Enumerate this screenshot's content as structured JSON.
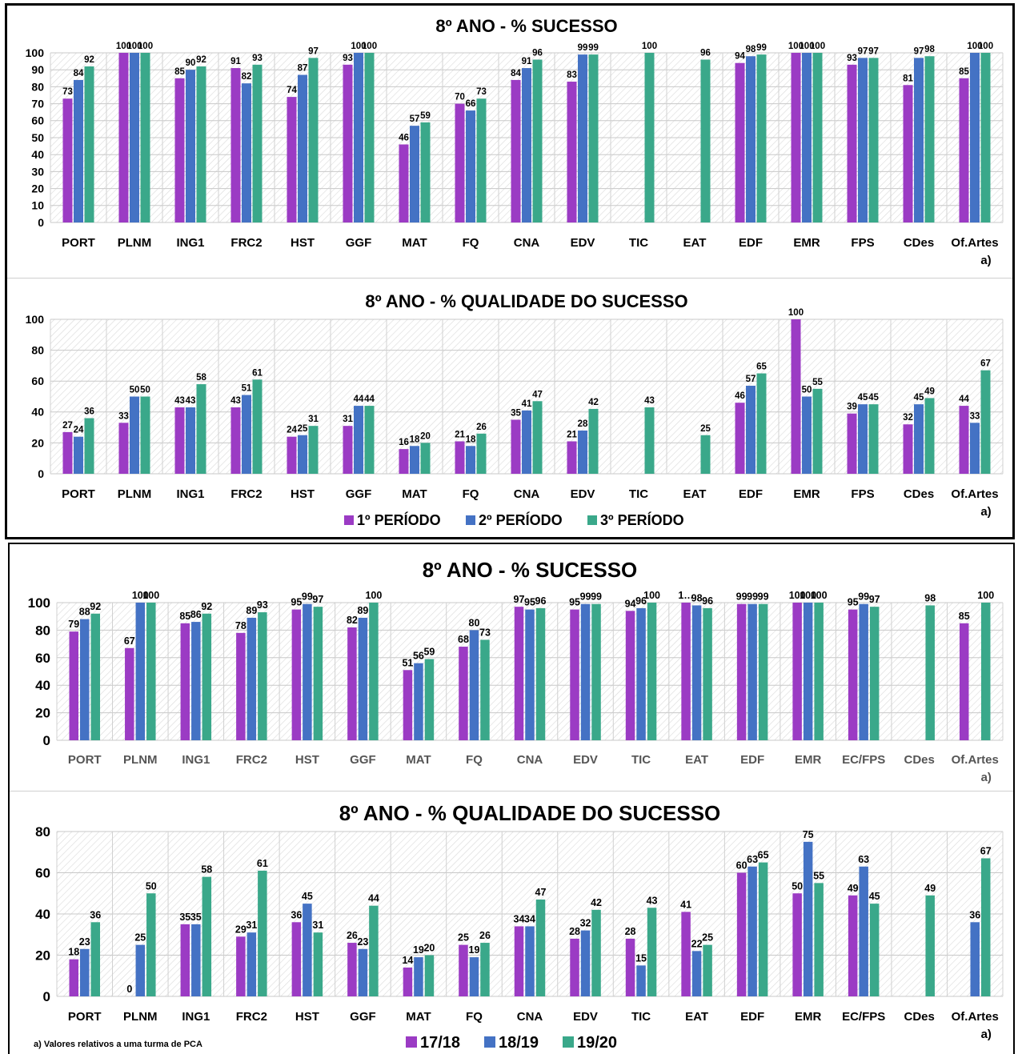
{
  "colors": {
    "c1": "#9b3bc4",
    "c2": "#4472c4",
    "c3": "#3aa88a"
  },
  "panels": {
    "top": {
      "legend": [
        "1º PERÍODO",
        "2º PERÍODO",
        "3º PERÍODO"
      ]
    },
    "bottom": {
      "legend": [
        "17/18",
        "18/19",
        "19/20"
      ],
      "footnote": "a) Valores relativos a  uma turma de PCA"
    }
  },
  "chart_data": [
    {
      "type": "bar",
      "title": "8º ANO - % SUCESSO",
      "categories": [
        "PORT",
        "PLNM",
        "ING1",
        "FRC2",
        "HST",
        "GGF",
        "MAT",
        "FQ",
        "CNA",
        "EDV",
        "TIC",
        "EAT",
        "EDF",
        "EMR",
        "FPS",
        "CDes",
        "Of.Artes"
      ],
      "category_notes": [
        "",
        "",
        "",
        "",
        "",
        "",
        "",
        "",
        "",
        "",
        "",
        "",
        "",
        "",
        "",
        "",
        "a)"
      ],
      "yticks": [
        0,
        10,
        20,
        30,
        40,
        50,
        60,
        70,
        80,
        90,
        100
      ],
      "ylim": [
        0,
        100
      ],
      "series": [
        {
          "name": "1º PERÍODO",
          "values": [
            73,
            100,
            85,
            91,
            74,
            93,
            46,
            70,
            84,
            83,
            null,
            null,
            94,
            100,
            93,
            81,
            85
          ]
        },
        {
          "name": "2º PERÍODO",
          "values": [
            84,
            100,
            90,
            82,
            87,
            100,
            57,
            66,
            91,
            99,
            null,
            null,
            98,
            100,
            97,
            97,
            100
          ]
        },
        {
          "name": "3º PERÍODO",
          "values": [
            92,
            100,
            92,
            93,
            97,
            100,
            59,
            73,
            96,
            99,
            100,
            96,
            99,
            100,
            97,
            98,
            100
          ]
        }
      ]
    },
    {
      "type": "bar",
      "title": "8º ANO - % QUALIDADE DO SUCESSO",
      "categories": [
        "PORT",
        "PLNM",
        "ING1",
        "FRC2",
        "HST",
        "GGF",
        "MAT",
        "FQ",
        "CNA",
        "EDV",
        "TIC",
        "EAT",
        "EDF",
        "EMR",
        "FPS",
        "CDes",
        "Of.Artes"
      ],
      "category_notes": [
        "",
        "",
        "",
        "",
        "",
        "",
        "",
        "",
        "",
        "",
        "",
        "",
        "",
        "",
        "",
        "",
        "a)"
      ],
      "yticks": [
        0,
        20,
        40,
        60,
        80,
        100
      ],
      "ylim": [
        0,
        100
      ],
      "series": [
        {
          "name": "1º PERÍODO",
          "values": [
            27,
            33,
            43,
            43,
            24,
            31,
            16,
            21,
            35,
            21,
            null,
            null,
            46,
            100,
            39,
            32,
            44
          ]
        },
        {
          "name": "2º PERÍODO",
          "values": [
            24,
            50,
            43,
            51,
            25,
            44,
            18,
            18,
            41,
            28,
            null,
            null,
            57,
            50,
            45,
            45,
            33
          ]
        },
        {
          "name": "3º PERÍODO",
          "values": [
            36,
            50,
            58,
            61,
            31,
            44,
            20,
            26,
            47,
            42,
            43,
            25,
            65,
            55,
            45,
            49,
            67
          ]
        }
      ]
    },
    {
      "type": "bar",
      "title": "8º ANO - % SUCESSO",
      "categories": [
        "PORT",
        "PLNM",
        "ING1",
        "FRC2",
        "HST",
        "GGF",
        "MAT",
        "FQ",
        "CNA",
        "EDV",
        "TIC",
        "EAT",
        "EDF",
        "EMR",
        "EC/FPS",
        "CDes",
        "Of.Artes"
      ],
      "category_notes": [
        "",
        "",
        "",
        "",
        "",
        "",
        "",
        "",
        "",
        "",
        "",
        "",
        "",
        "",
        "",
        "",
        "a)"
      ],
      "yticks": [
        0,
        20,
        40,
        60,
        80,
        100
      ],
      "ylim": [
        0,
        100
      ],
      "series": [
        {
          "name": "17/18",
          "values": [
            79,
            67,
            85,
            78,
            95,
            82,
            51,
            68,
            97,
            95,
            94,
            100,
            99,
            100,
            95,
            null,
            85
          ]
        },
        {
          "name": "18/19",
          "values": [
            88,
            100,
            86,
            89,
            99,
            89,
            56,
            80,
            95,
            99,
            96,
            98,
            99,
            100,
            99,
            null,
            null
          ]
        },
        {
          "name": "19/20",
          "values": [
            92,
            100,
            92,
            93,
            97,
            100,
            59,
            73,
            96,
            99,
            100,
            96,
            99,
            100,
            97,
            98,
            100
          ]
        }
      ],
      "value_labels": {
        "0-11": "1…"
      }
    },
    {
      "type": "bar",
      "title": "8º ANO - % QUALIDADE DO SUCESSO",
      "categories": [
        "PORT",
        "PLNM",
        "ING1",
        "FRC2",
        "HST",
        "GGF",
        "MAT",
        "FQ",
        "CNA",
        "EDV",
        "TIC",
        "EAT",
        "EDF",
        "EMR",
        "EC/FPS",
        "CDes",
        "Of.Artes"
      ],
      "category_notes": [
        "",
        "",
        "",
        "",
        "",
        "",
        "",
        "",
        "",
        "",
        "",
        "",
        "",
        "",
        "",
        "",
        "a)"
      ],
      "yticks": [
        0,
        20,
        40,
        60,
        80
      ],
      "ylim": [
        0,
        80
      ],
      "series": [
        {
          "name": "17/18",
          "values": [
            18,
            0,
            35,
            29,
            36,
            26,
            14,
            25,
            34,
            28,
            28,
            41,
            60,
            50,
            49,
            null,
            null
          ]
        },
        {
          "name": "18/19",
          "values": [
            23,
            25,
            35,
            31,
            45,
            23,
            19,
            19,
            34,
            32,
            15,
            22,
            63,
            75,
            63,
            null,
            36
          ]
        },
        {
          "name": "19/20",
          "values": [
            36,
            50,
            58,
            61,
            31,
            44,
            20,
            26,
            47,
            42,
            43,
            25,
            65,
            55,
            45,
            49,
            67
          ]
        }
      ]
    }
  ]
}
